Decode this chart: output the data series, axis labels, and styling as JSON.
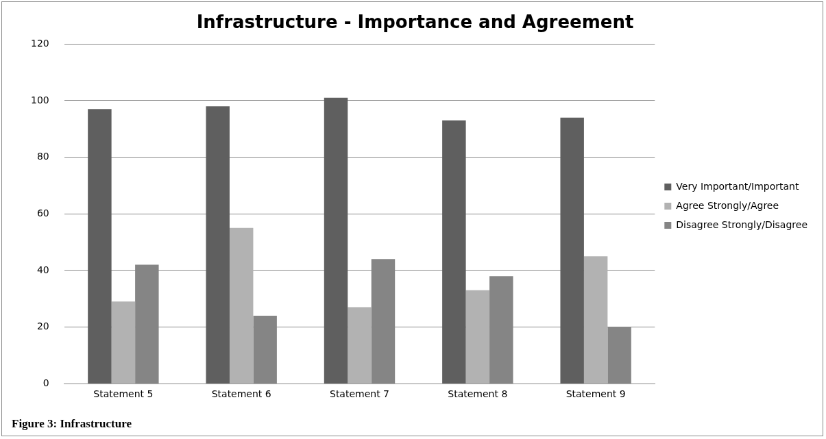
{
  "chart_data": {
    "type": "bar",
    "title": "Infrastructure - Importance and Agreement",
    "categories": [
      "Statement 5",
      "Statement 6",
      "Statement 7",
      "Statement 8",
      "Statement 9"
    ],
    "series": [
      {
        "name": "Very Important/Important",
        "color": "#5f5f5f",
        "values": [
          97,
          98,
          101,
          93,
          94
        ]
      },
      {
        "name": "Agree Strongly/Agree",
        "color": "#b2b2b2",
        "values": [
          29,
          55,
          27,
          33,
          45
        ]
      },
      {
        "name": "Disagree Strongly/Disagree",
        "color": "#858585",
        "values": [
          42,
          24,
          44,
          38,
          20
        ]
      }
    ],
    "ylim": [
      0,
      120
    ],
    "yticks": [
      0,
      20,
      40,
      60,
      80,
      100,
      120
    ],
    "grid": "y",
    "legend": "right",
    "annotations": [
      "Figure 3: Infrastructure"
    ]
  }
}
